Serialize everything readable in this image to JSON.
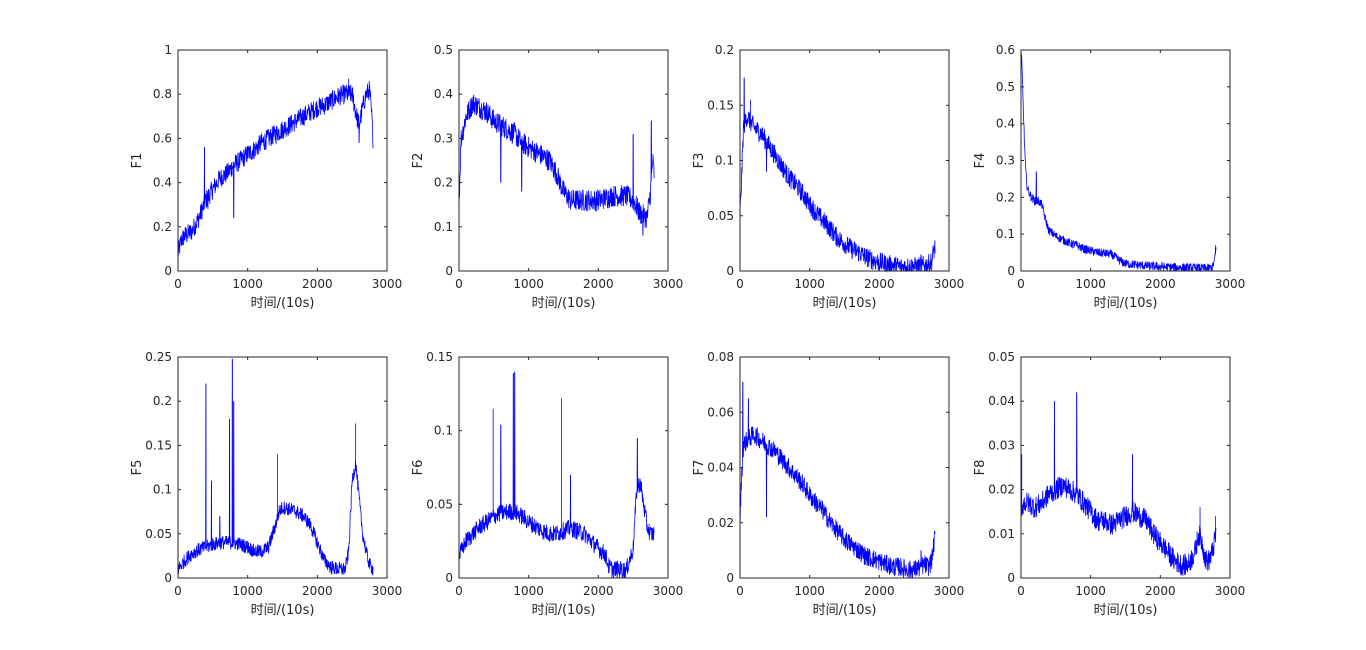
{
  "chart_data": [
    {
      "type": "line",
      "ylabel": "F1",
      "xlabel": "时间/(10s)",
      "xlim": [
        0,
        3000
      ],
      "ylim": [
        0,
        1
      ],
      "xticks": [
        0,
        1000,
        2000,
        3000
      ],
      "yticks": [
        0,
        0.2,
        0.4,
        0.6,
        0.8,
        1
      ],
      "color": "#0000ff",
      "x": [
        0,
        50,
        100,
        200,
        300,
        400,
        500,
        600,
        700,
        800,
        900,
        1000,
        1100,
        1200,
        1300,
        1400,
        1500,
        1600,
        1700,
        1800,
        1900,
        2000,
        2100,
        2200,
        2300,
        2400,
        2450,
        2500,
        2550,
        2600,
        2650,
        2700,
        2750,
        2780,
        2800
      ],
      "y": [
        0.08,
        0.14,
        0.16,
        0.18,
        0.24,
        0.32,
        0.37,
        0.42,
        0.44,
        0.48,
        0.5,
        0.53,
        0.55,
        0.58,
        0.6,
        0.62,
        0.64,
        0.66,
        0.68,
        0.7,
        0.72,
        0.74,
        0.75,
        0.77,
        0.79,
        0.8,
        0.8,
        0.8,
        0.72,
        0.66,
        0.74,
        0.8,
        0.82,
        0.7,
        0.6
      ],
      "noise": 0.045,
      "spikes": [
        [
          380,
          0.56
        ],
        [
          430,
          0.28
        ],
        [
          800,
          0.24
        ],
        [
          2450,
          0.87
        ],
        [
          2600,
          0.58
        ]
      ]
    },
    {
      "type": "line",
      "ylabel": "F2",
      "xlabel": "时间/(10s)",
      "xlim": [
        0,
        3000
      ],
      "ylim": [
        0,
        0.5
      ],
      "xticks": [
        0,
        1000,
        2000,
        3000
      ],
      "yticks": [
        0,
        0.1,
        0.2,
        0.3,
        0.4,
        0.5
      ],
      "color": "#0000ff",
      "x": [
        0,
        30,
        60,
        100,
        200,
        300,
        400,
        500,
        600,
        700,
        800,
        900,
        1000,
        1100,
        1200,
        1300,
        1400,
        1500,
        1600,
        1800,
        2000,
        2200,
        2400,
        2500,
        2600,
        2700,
        2750,
        2780,
        2800
      ],
      "y": [
        0.15,
        0.3,
        0.32,
        0.35,
        0.38,
        0.37,
        0.36,
        0.34,
        0.33,
        0.32,
        0.31,
        0.29,
        0.28,
        0.27,
        0.26,
        0.25,
        0.22,
        0.18,
        0.16,
        0.16,
        0.16,
        0.17,
        0.17,
        0.16,
        0.13,
        0.12,
        0.18,
        0.25,
        0.22
      ],
      "noise": 0.025,
      "spikes": [
        [
          600,
          0.2
        ],
        [
          900,
          0.18
        ],
        [
          2500,
          0.31
        ],
        [
          2760,
          0.34
        ],
        [
          2640,
          0.08
        ]
      ]
    },
    {
      "type": "line",
      "ylabel": "F3",
      "xlabel": "时间/(10s)",
      "xlim": [
        0,
        3000
      ],
      "ylim": [
        0,
        0.2
      ],
      "xticks": [
        0,
        1000,
        2000,
        3000
      ],
      "yticks": [
        0,
        0.05,
        0.1,
        0.15,
        0.2
      ],
      "color": "#0000ff",
      "x": [
        0,
        20,
        50,
        100,
        200,
        300,
        400,
        500,
        600,
        700,
        800,
        900,
        1000,
        1100,
        1200,
        1300,
        1400,
        1500,
        1600,
        1700,
        1800,
        1900,
        2000,
        2100,
        2200,
        2300,
        2400,
        2500,
        2600,
        2650,
        2700,
        2750,
        2780,
        2800
      ],
      "y": [
        0.05,
        0.08,
        0.13,
        0.14,
        0.13,
        0.125,
        0.115,
        0.105,
        0.095,
        0.085,
        0.078,
        0.07,
        0.06,
        0.052,
        0.045,
        0.038,
        0.03,
        0.025,
        0.02,
        0.017,
        0.013,
        0.01,
        0.008,
        0.006,
        0.005,
        0.004,
        0.004,
        0.004,
        0.004,
        0.005,
        0.006,
        0.008,
        0.018,
        0.022
      ],
      "noise": 0.009,
      "spikes": [
        [
          60,
          0.175
        ],
        [
          150,
          0.155
        ],
        [
          380,
          0.09
        ],
        [
          2600,
          0.015
        ]
      ]
    },
    {
      "type": "line",
      "ylabel": "F4",
      "xlabel": "时间/(10s)",
      "xlim": [
        0,
        3000
      ],
      "ylim": [
        0,
        0.6
      ],
      "xticks": [
        0,
        1000,
        2000,
        3000
      ],
      "yticks": [
        0,
        0.1,
        0.2,
        0.3,
        0.4,
        0.5,
        0.6
      ],
      "color": "#0000ff",
      "x": [
        0,
        10,
        20,
        40,
        60,
        80,
        100,
        150,
        200,
        250,
        300,
        350,
        400,
        500,
        600,
        700,
        800,
        900,
        1000,
        1100,
        1200,
        1300,
        1400,
        1500,
        1600,
        1800,
        2000,
        2200,
        2400,
        2600,
        2700,
        2750,
        2780,
        2800
      ],
      "y": [
        0.56,
        0.58,
        0.52,
        0.4,
        0.3,
        0.24,
        0.22,
        0.2,
        0.19,
        0.19,
        0.18,
        0.14,
        0.11,
        0.095,
        0.085,
        0.075,
        0.07,
        0.06,
        0.055,
        0.05,
        0.048,
        0.045,
        0.03,
        0.02,
        0.018,
        0.014,
        0.012,
        0.01,
        0.009,
        0.008,
        0.008,
        0.01,
        0.03,
        0.06
      ],
      "noise": 0.012,
      "spikes": [
        [
          30,
          0.46
        ],
        [
          220,
          0.27
        ],
        [
          2790,
          0.07
        ]
      ]
    },
    {
      "type": "line",
      "ylabel": "F5",
      "xlabel": "时间/(10s)",
      "xlim": [
        0,
        3000
      ],
      "ylim": [
        0,
        0.25
      ],
      "xticks": [
        0,
        1000,
        2000,
        3000
      ],
      "yticks": [
        0,
        0.05,
        0.1,
        0.15,
        0.2,
        0.25
      ],
      "color": "#0000ff",
      "x": [
        0,
        50,
        100,
        200,
        300,
        400,
        500,
        600,
        700,
        800,
        900,
        1000,
        1100,
        1200,
        1300,
        1400,
        1450,
        1500,
        1600,
        1700,
        1800,
        1900,
        2000,
        2100,
        2200,
        2300,
        2400,
        2450,
        2500,
        2550,
        2600,
        2650,
        2700,
        2750,
        2800
      ],
      "y": [
        0.01,
        0.015,
        0.02,
        0.028,
        0.032,
        0.035,
        0.038,
        0.04,
        0.04,
        0.04,
        0.038,
        0.035,
        0.03,
        0.03,
        0.035,
        0.06,
        0.075,
        0.08,
        0.078,
        0.075,
        0.07,
        0.06,
        0.04,
        0.02,
        0.012,
        0.01,
        0.01,
        0.03,
        0.11,
        0.13,
        0.09,
        0.05,
        0.03,
        0.015,
        0.01
      ],
      "noise": 0.008,
      "spikes": [
        [
          400,
          0.22
        ],
        [
          740,
          0.18
        ],
        [
          780,
          0.248
        ],
        [
          800,
          0.2
        ],
        [
          480,
          0.11
        ],
        [
          1430,
          0.14
        ],
        [
          2550,
          0.175
        ],
        [
          600,
          0.07
        ]
      ]
    },
    {
      "type": "line",
      "ylabel": "F6",
      "xlabel": "时间/(10s)",
      "xlim": [
        0,
        3000
      ],
      "ylim": [
        0,
        0.15
      ],
      "xticks": [
        0,
        1000,
        2000,
        3000
      ],
      "yticks": [
        0,
        0.05,
        0.1,
        0.15
      ],
      "color": "#0000ff",
      "x": [
        0,
        50,
        100,
        200,
        300,
        400,
        500,
        600,
        700,
        800,
        900,
        1000,
        1100,
        1200,
        1300,
        1400,
        1500,
        1600,
        1700,
        1800,
        1900,
        2000,
        2100,
        2150,
        2200,
        2300,
        2400,
        2500,
        2550,
        2600,
        2650,
        2700,
        2750,
        2800
      ],
      "y": [
        0.015,
        0.02,
        0.025,
        0.03,
        0.035,
        0.038,
        0.042,
        0.044,
        0.045,
        0.045,
        0.042,
        0.038,
        0.035,
        0.032,
        0.03,
        0.03,
        0.032,
        0.034,
        0.032,
        0.03,
        0.025,
        0.02,
        0.016,
        0.008,
        0.006,
        0.006,
        0.005,
        0.02,
        0.06,
        0.065,
        0.05,
        0.035,
        0.03,
        0.03
      ],
      "noise": 0.006,
      "spikes": [
        [
          490,
          0.115
        ],
        [
          600,
          0.104
        ],
        [
          780,
          0.139
        ],
        [
          800,
          0.14
        ],
        [
          1470,
          0.122
        ],
        [
          1600,
          0.07
        ],
        [
          2560,
          0.095
        ],
        [
          2620,
          0.065
        ]
      ]
    },
    {
      "type": "line",
      "ylabel": "F7",
      "xlabel": "时间/(10s)",
      "xlim": [
        0,
        3000
      ],
      "ylim": [
        0,
        0.08
      ],
      "xticks": [
        0,
        1000,
        2000,
        3000
      ],
      "yticks": [
        0,
        0.02,
        0.04,
        0.06,
        0.08
      ],
      "color": "#0000ff",
      "x": [
        0,
        20,
        50,
        100,
        200,
        300,
        400,
        500,
        600,
        700,
        800,
        900,
        1000,
        1100,
        1200,
        1300,
        1400,
        1500,
        1600,
        1700,
        1800,
        1900,
        2000,
        2100,
        2200,
        2300,
        2400,
        2500,
        2600,
        2650,
        2700,
        2750,
        2780,
        2800
      ],
      "y": [
        0.02,
        0.035,
        0.048,
        0.05,
        0.052,
        0.05,
        0.048,
        0.046,
        0.043,
        0.04,
        0.037,
        0.034,
        0.03,
        0.027,
        0.024,
        0.02,
        0.017,
        0.014,
        0.012,
        0.01,
        0.008,
        0.007,
        0.006,
        0.005,
        0.004,
        0.004,
        0.003,
        0.003,
        0.004,
        0.005,
        0.004,
        0.006,
        0.012,
        0.015
      ],
      "noise": 0.0035,
      "spikes": [
        [
          40,
          0.071
        ],
        [
          120,
          0.065
        ],
        [
          380,
          0.022
        ],
        [
          2600,
          0.01
        ]
      ]
    },
    {
      "type": "line",
      "ylabel": "F8",
      "xlabel": "时间/(10s)",
      "xlim": [
        0,
        3000
      ],
      "ylim": [
        0,
        0.05
      ],
      "xticks": [
        0,
        1000,
        2000,
        3000
      ],
      "yticks": [
        0,
        0.01,
        0.02,
        0.03,
        0.04,
        0.05
      ],
      "color": "#0000ff",
      "x": [
        0,
        50,
        100,
        200,
        300,
        400,
        500,
        600,
        700,
        800,
        900,
        1000,
        1100,
        1200,
        1300,
        1400,
        1500,
        1600,
        1700,
        1800,
        1900,
        2000,
        2100,
        2200,
        2300,
        2400,
        2500,
        2550,
        2600,
        2650,
        2700,
        2750,
        2800
      ],
      "y": [
        0.016,
        0.017,
        0.017,
        0.016,
        0.017,
        0.019,
        0.02,
        0.021,
        0.02,
        0.019,
        0.017,
        0.015,
        0.013,
        0.013,
        0.012,
        0.013,
        0.014,
        0.015,
        0.014,
        0.013,
        0.01,
        0.008,
        0.006,
        0.004,
        0.003,
        0.003,
        0.006,
        0.01,
        0.008,
        0.004,
        0.004,
        0.006,
        0.01
      ],
      "noise": 0.0025,
      "spikes": [
        [
          10,
          0.028
        ],
        [
          480,
          0.04
        ],
        [
          800,
          0.042
        ],
        [
          1600,
          0.028
        ],
        [
          2570,
          0.016
        ],
        [
          2790,
          0.014
        ]
      ]
    }
  ]
}
